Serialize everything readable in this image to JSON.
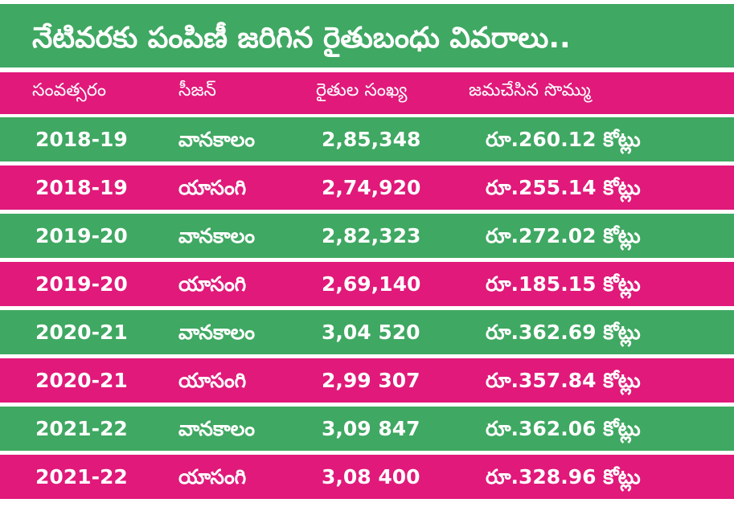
{
  "title": "నేటివరకు పంపిణీ జరిగిన రైతుబంధు వివరాలు..",
  "headers": [
    "సంవత్సరం",
    "సీజన్",
    "రైతుల సంఖ్య",
    "జమచేసిన సొమ్ము"
  ],
  "rows": [
    {
      "year": "2018-19",
      "season": "వానకాలం",
      "farmers": "2,85,348",
      "amount": "రూ.260.12 కోట్లు"
    },
    {
      "year": "2018-19",
      "season": "యాసంగి",
      "farmers": "2,74,920",
      "amount": "రూ.255.14 కోట్లు"
    },
    {
      "year": "2019-20",
      "season": "వానకాలం",
      "farmers": "2,82,323",
      "amount": "రూ.272.02 కోట్లు"
    },
    {
      "year": "2019-20",
      "season": "యాసంగి",
      "farmers": "2,69,140",
      "amount": "రూ.185.15 కోట్లు"
    },
    {
      "year": "2020-21",
      "season": "వానకాలం",
      "farmers": "3,04 520",
      "amount": "రూ.362.69 కోట్లు"
    },
    {
      "year": "2020-21",
      "season": "యాసంగి",
      "farmers": "2,99 307",
      "amount": "రూ.357.84 కోట్లు"
    },
    {
      "year": "2021-22",
      "season": "వానకాలం",
      "farmers": "3,09 847",
      "amount": "రూ.362.06 కోట్లు"
    },
    {
      "year": "2021-22",
      "season": "యాసంగి",
      "farmers": "3,08 400",
      "amount": "రూ.328.96 కోట్లు"
    }
  ],
  "colors": {
    "green": "#3fa862",
    "pink": "#e0197a",
    "text": "#ffffff"
  }
}
